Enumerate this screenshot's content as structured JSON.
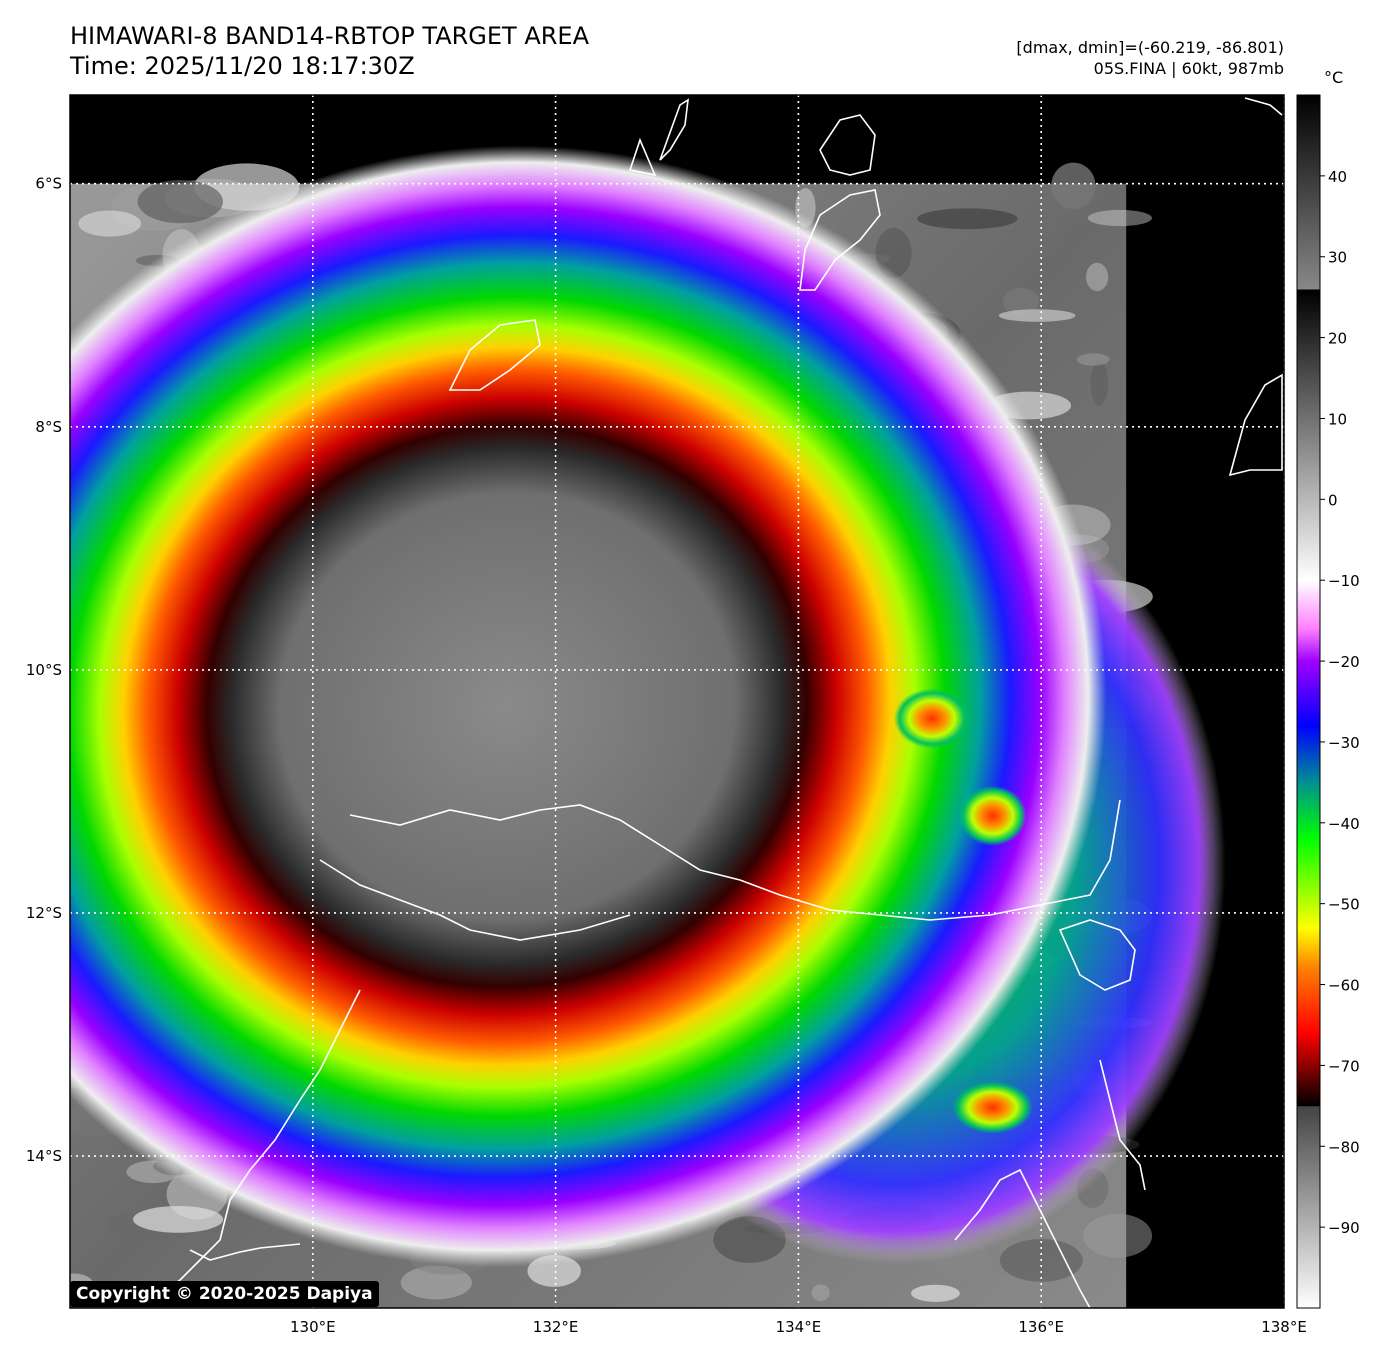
{
  "title": {
    "line1": "HIMAWARI-8 BAND14-RBTOP TARGET AREA",
    "line2": "Time: 2025/11/20 18:17:30Z"
  },
  "info": {
    "dmax_dmin": "[dmax, dmin]=(-60.219, -86.801)",
    "storm": "05S.FINA | 60kt, 987mb"
  },
  "map": {
    "lon_range": [
      128,
      138
    ],
    "lat_range": [
      -15.25,
      -5.27
    ],
    "lon_ticks": [
      {
        "value": 130,
        "label": "130°E"
      },
      {
        "value": 132,
        "label": "132°E"
      },
      {
        "value": 134,
        "label": "134°E"
      },
      {
        "value": 136,
        "label": "136°E"
      },
      {
        "value": 138,
        "label": "138°E"
      }
    ],
    "lat_ticks": [
      {
        "value": -6,
        "label": "6°S"
      },
      {
        "value": -8,
        "label": "8°S"
      },
      {
        "value": -10,
        "label": "10°S"
      },
      {
        "value": -12,
        "label": "12°S"
      },
      {
        "value": -14,
        "label": "14°S"
      }
    ],
    "storm_center": {
      "lon": 131.6,
      "lat": -10.3
    },
    "data_extent": {
      "lat_top": -6,
      "lon_right": 136.7
    }
  },
  "colorbar": {
    "unit": "°C",
    "range": [
      -100,
      50
    ],
    "ticks": [
      40,
      30,
      20,
      10,
      0,
      -10,
      -20,
      -30,
      -40,
      -50,
      -60,
      -70,
      -80,
      -90
    ],
    "stops": [
      {
        "t": 50,
        "color": "#000000"
      },
      {
        "t": 26,
        "color": "#888888"
      },
      {
        "t": 25.9,
        "color": "#000000"
      },
      {
        "t": -10,
        "color": "#ffffff"
      },
      {
        "t": -16,
        "color": "#ff80ff"
      },
      {
        "t": -20,
        "color": "#a000ff"
      },
      {
        "t": -28,
        "color": "#0000ff"
      },
      {
        "t": -35,
        "color": "#009090"
      },
      {
        "t": -42,
        "color": "#00ff00"
      },
      {
        "t": -53,
        "color": "#ffff00"
      },
      {
        "t": -58,
        "color": "#ff8000"
      },
      {
        "t": -66,
        "color": "#ff0000"
      },
      {
        "t": -75,
        "color": "#000000"
      },
      {
        "t": -75.1,
        "color": "#444444"
      },
      {
        "t": -100,
        "color": "#ffffff"
      }
    ]
  },
  "copyright": "Copyright © 2020-2025 Dapiya"
}
